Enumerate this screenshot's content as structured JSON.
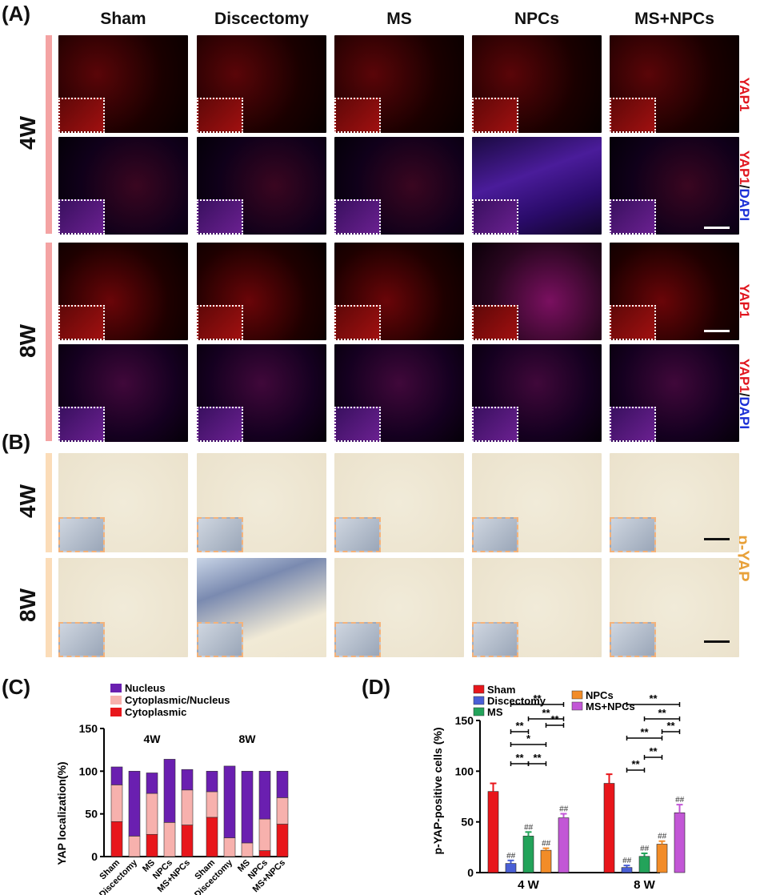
{
  "panels": {
    "a": "(A)",
    "b": "(B)",
    "c": "(C)",
    "d": "(D)"
  },
  "groups": [
    "Sham",
    "Discectomy",
    "MS",
    "NPCs",
    "MS+NPCs"
  ],
  "timepoints": {
    "w4": "4W",
    "w8": "8W"
  },
  "stain_labels": {
    "yap1": "YAP1",
    "merge_red": "YAP1",
    "merge_sep": "/",
    "merge_blue": "DAPI",
    "pyap": "p-YAP"
  },
  "colors": {
    "yap_red": "#e0151e",
    "dapi_blue": "#1a2fd6",
    "pyap_orange": "#e8a13a",
    "bar_row_a": "#f4a3a3",
    "bar_row_b": "#fbdcb8"
  },
  "chart_c": {
    "type": "bar",
    "stacked": true,
    "ylabel": "YAP localization(%)",
    "ylim": [
      0,
      150
    ],
    "yticks": [
      0,
      50,
      100,
      150
    ],
    "group_labels": [
      "4W",
      "8W"
    ],
    "categories": [
      "Sham",
      "Discectomy",
      "MS",
      "NPCs",
      "MS+NPCs"
    ],
    "legend": [
      "Nucleus",
      "Cytoplasmic/Nucleus",
      "Cytoplasmic"
    ],
    "legend_position": "top",
    "colors": {
      "Nucleus": "#6a1fb0",
      "Cytoplasmic/Nucleus": "#f7b1ad",
      "Cytoplasmic": "#e8161b"
    }
  },
  "chart_d": {
    "type": "bar",
    "ylabel": "p-YAP-positive cells (%)",
    "ylim": [
      0,
      150
    ],
    "yticks": [
      0,
      50,
      100,
      150
    ],
    "x_groups": [
      "4 W",
      "8 W"
    ],
    "legend": [
      "Sham",
      "Discectomy",
      "MS",
      "NPCs",
      "MS+NPCs"
    ],
    "legend_position": "top",
    "colors": [
      "#e8161b",
      "#4a5fd6",
      "#23a35a",
      "#f28c28",
      "#c257d6"
    ],
    "sig_symbol": "**",
    "sig_single": "*",
    "hash_symbol": "##"
  },
  "chart_data": [
    {
      "type": "bar",
      "stacked": true,
      "title": "",
      "ylabel": "YAP localization(%)",
      "ylim": [
        0,
        150
      ],
      "categories": [
        "Sham",
        "Discectomy",
        "MS",
        "NPCs",
        "MS+NPCs"
      ],
      "groups": [
        "4W",
        "8W"
      ],
      "series": [
        {
          "name": "Cytoplasmic",
          "group": "4W",
          "values": [
            41,
            0,
            26,
            0,
            37
          ]
        },
        {
          "name": "Cytoplasmic/Nucleus",
          "group": "4W",
          "values": [
            43,
            24,
            48,
            40,
            41
          ]
        },
        {
          "name": "Nucleus",
          "group": "4W",
          "values": [
            21,
            76,
            24,
            74,
            24
          ]
        },
        {
          "name": "Cytoplasmic",
          "group": "8W",
          "values": [
            46,
            0,
            0,
            7,
            38
          ]
        },
        {
          "name": "Cytoplasmic/Nucleus",
          "group": "8W",
          "values": [
            30,
            22,
            16,
            37,
            31
          ]
        },
        {
          "name": "Nucleus",
          "group": "8W",
          "values": [
            24,
            84,
            84,
            56,
            31
          ]
        }
      ]
    },
    {
      "type": "bar",
      "title": "",
      "ylabel": "p-YAP-positive cells (%)",
      "ylim": [
        0,
        150
      ],
      "categories": [
        "4 W",
        "8 W"
      ],
      "series": [
        {
          "name": "Sham",
          "values": [
            80,
            88
          ],
          "error": [
            8,
            9
          ]
        },
        {
          "name": "Discectomy",
          "values": [
            9,
            5
          ],
          "error": [
            3,
            2
          ]
        },
        {
          "name": "MS",
          "values": [
            36,
            16
          ],
          "error": [
            4,
            3
          ]
        },
        {
          "name": "NPCs",
          "values": [
            22,
            28
          ],
          "error": [
            2,
            3
          ]
        },
        {
          "name": "MS+NPCs",
          "values": [
            54,
            59
          ],
          "error": [
            4,
            8
          ]
        }
      ]
    }
  ]
}
